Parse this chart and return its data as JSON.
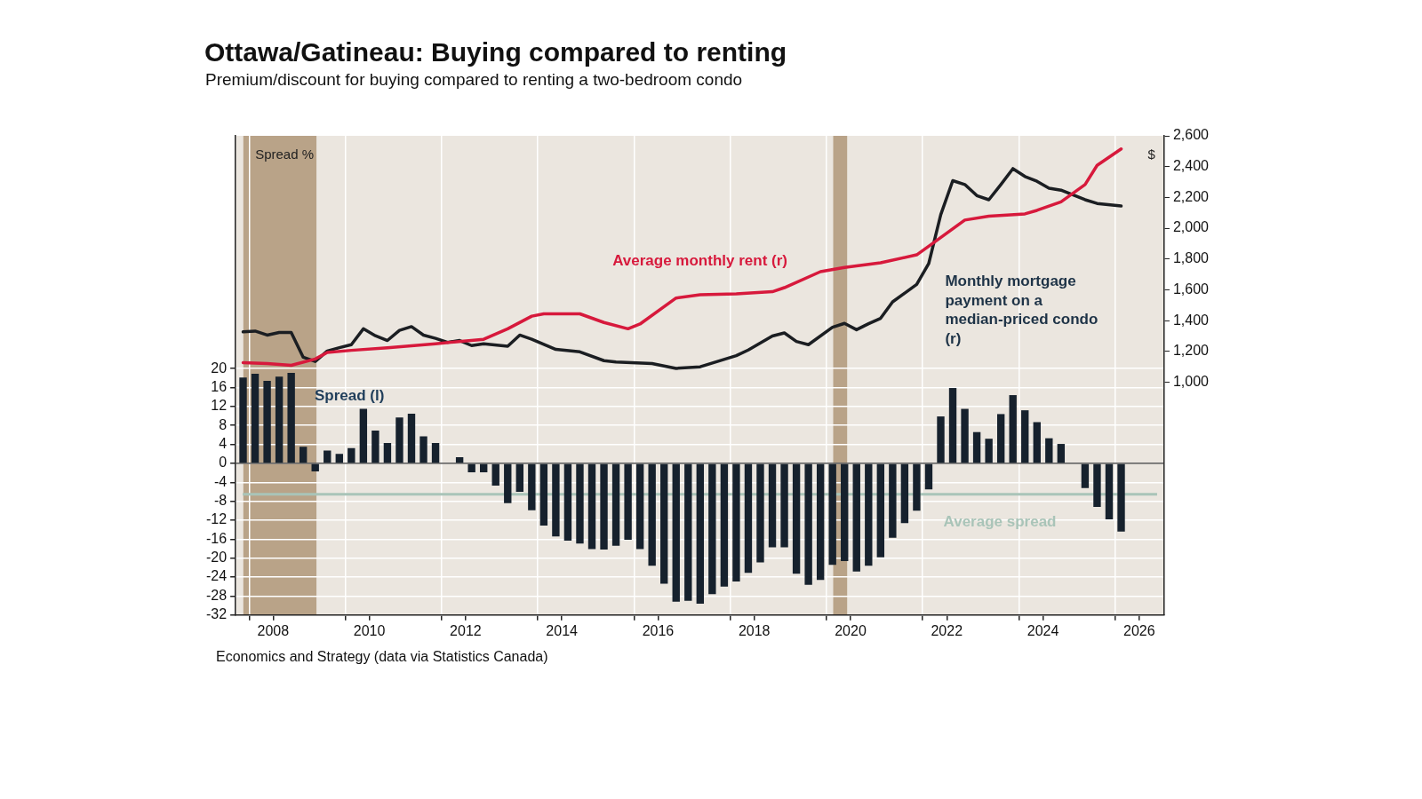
{
  "chart_data": {
    "type": "bar",
    "title": "Ottawa/Gatineau: Buying compared to renting",
    "subtitle": "Premium/discount for buying compared to renting a two-bedroom condo",
    "ylabel": "Spread %",
    "y2label": "$",
    "x": [
      2007.875,
      2008.125,
      2008.375,
      2008.625,
      2008.875,
      2009.125,
      2009.375,
      2009.625,
      2009.875,
      2010.125,
      2010.375,
      2010.625,
      2010.875,
      2011.125,
      2011.375,
      2011.625,
      2011.875,
      2012.125,
      2012.375,
      2012.625,
      2012.875,
      2013.125,
      2013.375,
      2013.625,
      2013.875,
      2014.125,
      2014.375,
      2014.625,
      2014.875,
      2015.125,
      2015.375,
      2015.625,
      2015.875,
      2016.125,
      2016.375,
      2016.625,
      2016.875,
      2017.125,
      2017.375,
      2017.625,
      2017.875,
      2018.125,
      2018.375,
      2018.625,
      2018.875,
      2019.125,
      2019.375,
      2019.625,
      2019.875,
      2020.125,
      2020.375,
      2020.625,
      2020.875,
      2021.125,
      2021.375,
      2021.625,
      2021.875,
      2022.125,
      2022.375,
      2022.625,
      2022.875,
      2023.125,
      2023.375,
      2023.625,
      2023.875,
      2024.125,
      2024.375,
      2024.625,
      2024.875,
      2025.125,
      2025.375,
      2025.625,
      2025.875,
      2026.125
    ],
    "series": [
      {
        "name": "Spread (l)",
        "color": "#16212d",
        "values": [
          18.1,
          18.9,
          17.4,
          18.3,
          19.1,
          3.5,
          -1.7,
          2.7,
          2.0,
          3.2,
          11.5,
          6.9,
          4.3,
          9.7,
          10.5,
          5.7,
          4.3,
          null,
          1.3,
          -1.9,
          -1.9,
          -4.7,
          -8.4,
          -6.0,
          -9.9,
          -13.1,
          -15.4,
          -16.3,
          -16.9,
          -18.1,
          -18.2,
          -17.4,
          -16.1,
          -18.1,
          -21.6,
          -25.4,
          -29.2,
          -29.0,
          -29.6,
          -27.6,
          -26.0,
          -24.9,
          -23.1,
          -20.9,
          -17.7,
          -17.7,
          -23.3,
          -25.6,
          -24.6,
          -21.4,
          -20.6,
          -22.8,
          -21.6,
          -19.8,
          -15.7,
          -12.6,
          -10.0,
          -5.5,
          9.9,
          15.9,
          11.5,
          6.6,
          5.2,
          10.4,
          14.4,
          11.2,
          8.7,
          5.3,
          4.1,
          null,
          -5.2,
          -9.2,
          -11.8,
          -14.4
        ]
      },
      {
        "name": "Average monthly rent (r)",
        "type": "line",
        "axis": "y2",
        "color": "#d7193c",
        "x": [
          2007.875,
          2008.375,
          2008.875,
          2009.375,
          2009.625,
          2010.125,
          2010.875,
          2011.875,
          2012.875,
          2013.375,
          2013.875,
          2014.125,
          2014.875,
          2015.375,
          2015.875,
          2016.125,
          2016.875,
          2017.375,
          2018.125,
          2018.875,
          2019.125,
          2019.875,
          2020.375,
          2021.125,
          2021.875,
          2022.125,
          2022.875,
          2023.375,
          2024.125,
          2024.375,
          2024.875,
          2025.375,
          2025.625,
          2026.125
        ],
        "values": [
          1127,
          1121,
          1110,
          1151,
          1193,
          1207,
          1224,
          1250,
          1279,
          1347,
          1429,
          1444,
          1444,
          1388,
          1347,
          1378,
          1547,
          1568,
          1574,
          1588,
          1614,
          1718,
          1745,
          1776,
          1827,
          1883,
          2053,
          2078,
          2093,
          2116,
          2171,
          2284,
          2408,
          2515
        ]
      },
      {
        "name": "Monthly mortgage payment on a median-priced condo (r)",
        "type": "line",
        "axis": "y2",
        "color": "#1b1e22",
        "x": [
          2007.875,
          2008.125,
          2008.375,
          2008.625,
          2008.875,
          2009.125,
          2009.375,
          2009.625,
          2009.875,
          2010.125,
          2010.375,
          2010.625,
          2010.875,
          2011.125,
          2011.375,
          2011.625,
          2011.875,
          2012.125,
          2012.375,
          2012.625,
          2012.875,
          2013.375,
          2013.625,
          2013.875,
          2014.375,
          2014.875,
          2015.375,
          2015.625,
          2016.375,
          2016.875,
          2017.375,
          2018.125,
          2018.375,
          2018.875,
          2019.125,
          2019.375,
          2019.625,
          2020.125,
          2020.375,
          2020.625,
          2020.875,
          2021.125,
          2021.375,
          2021.875,
          2022.125,
          2022.375,
          2022.625,
          2022.875,
          2023.125,
          2023.375,
          2023.625,
          2023.875,
          2024.125,
          2024.375,
          2024.625,
          2024.875,
          2025.375,
          2025.625,
          2026.125
        ],
        "values": [
          1327,
          1332,
          1306,
          1323,
          1323,
          1162,
          1135,
          1203,
          1224,
          1244,
          1347,
          1302,
          1271,
          1337,
          1361,
          1306,
          1285,
          1259,
          1271,
          1238,
          1250,
          1234,
          1306,
          1279,
          1213,
          1197,
          1140,
          1131,
          1121,
          1090,
          1100,
          1172,
          1209,
          1300,
          1320,
          1265,
          1244,
          1357,
          1382,
          1341,
          1380,
          1415,
          1522,
          1635,
          1770,
          2088,
          2309,
          2284,
          2212,
          2185,
          2284,
          2387,
          2336,
          2305,
          2260,
          2247,
          2185,
          2161,
          2144
        ]
      }
    ],
    "xlim": [
      2007.72,
      2027.02
    ],
    "xticks": [
      {
        "value": 2008,
        "label": null
      },
      {
        "value": 2008.5,
        "label": "2008"
      },
      {
        "value": 2010,
        "label": null
      },
      {
        "value": 2010.5,
        "label": "2010"
      },
      {
        "value": 2012,
        "label": null
      },
      {
        "value": 2012.5,
        "label": "2012"
      },
      {
        "value": 2014,
        "label": null
      },
      {
        "value": 2014.5,
        "label": "2014"
      },
      {
        "value": 2016,
        "label": null
      },
      {
        "value": 2016.5,
        "label": "2016"
      },
      {
        "value": 2018,
        "label": null
      },
      {
        "value": 2018.5,
        "label": "2018"
      },
      {
        "value": 2020,
        "label": null
      },
      {
        "value": 2020.5,
        "label": "2020"
      },
      {
        "value": 2022,
        "label": null
      },
      {
        "value": 2022.5,
        "label": "2022"
      },
      {
        "value": 2024,
        "label": null
      },
      {
        "value": 2024.5,
        "label": "2024"
      },
      {
        "value": 2026,
        "label": null
      },
      {
        "value": 2026.5,
        "label": "2026"
      }
    ],
    "ylim": [
      -32,
      69.1
    ],
    "yticks": [
      -32,
      -28,
      -24,
      -20,
      -16,
      -12,
      -8,
      -4,
      0,
      4,
      8,
      12,
      16,
      20
    ],
    "y2lim": [
      -512,
      2600
    ],
    "y2ticks": [
      {
        "value": 1000,
        "label": "1,000"
      },
      {
        "value": 1200,
        "label": "1,200"
      },
      {
        "value": 1400,
        "label": "1,400"
      },
      {
        "value": 1600,
        "label": "1,600"
      },
      {
        "value": 1800,
        "label": "1,800"
      },
      {
        "value": 2000,
        "label": "2,000"
      },
      {
        "value": 2200,
        "label": "2,200"
      },
      {
        "value": 2400,
        "label": "2,400"
      },
      {
        "value": 2600,
        "label": "2,600"
      }
    ],
    "ref_lines": [
      {
        "axis": "y",
        "value": -6.5,
        "label": "Average spread",
        "color": "#a9c4b8"
      }
    ],
    "bands": [
      {
        "axis": "x",
        "from": 2007.88,
        "to": 2009.4,
        "color": "#b9a388"
      },
      {
        "axis": "x",
        "from": 2020.14,
        "to": 2020.43,
        "color": "#b9a388"
      }
    ],
    "grid": true,
    "legend": false,
    "annotations": [
      "Economics and Strategy (data via Statistics Canada)"
    ]
  }
}
